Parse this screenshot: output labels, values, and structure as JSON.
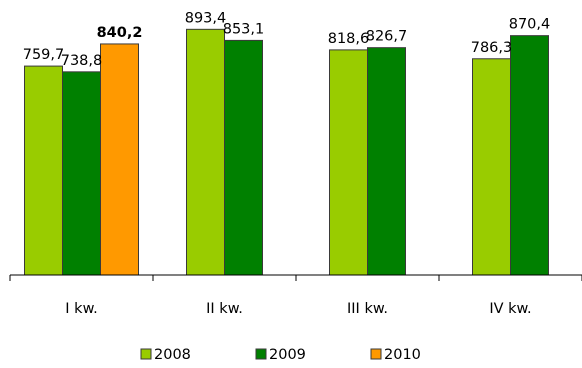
{
  "chart_data": {
    "type": "bar",
    "categories": [
      "I kw.",
      "II kw.",
      "III kw.",
      "IV kw."
    ],
    "series": [
      {
        "name": "2008",
        "color": "#99cc00",
        "values": [
          759.7,
          893.4,
          818.6,
          786.3
        ],
        "labels": [
          "759,7",
          "893,4",
          "818,6",
          "786,3"
        ]
      },
      {
        "name": "2009",
        "color": "#008000",
        "values": [
          738.8,
          853.1,
          826.7,
          870.4
        ],
        "labels": [
          "738,8",
          "853,1",
          "826,7",
          "870,4"
        ]
      },
      {
        "name": "2010",
        "color": "#ff9900",
        "values": [
          840.2,
          null,
          null,
          null
        ],
        "labels": [
          "840,2",
          null,
          null,
          null
        ],
        "bold_labels": true
      }
    ],
    "ylim": [
      0,
      1000
    ],
    "title": "",
    "xlabel": "",
    "ylabel": "",
    "grid": false,
    "legend_position": "bottom"
  }
}
